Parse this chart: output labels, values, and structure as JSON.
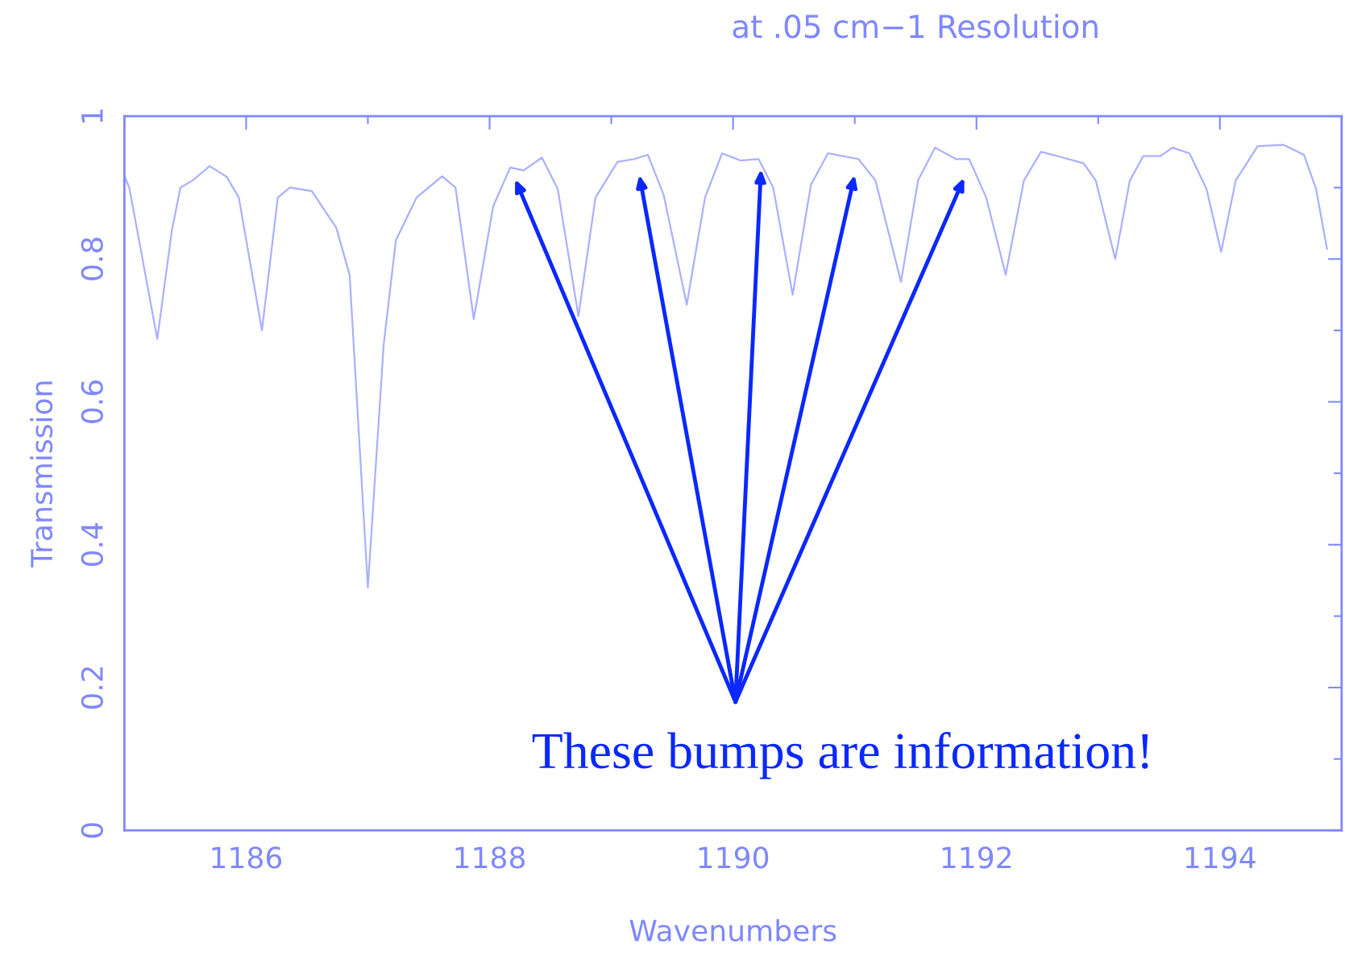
{
  "chart_data": {
    "type": "line",
    "title": "at .05 cm−1 Resolution",
    "xlabel": "Wavenumbers",
    "ylabel": "Transmission",
    "x": [
      1185.0,
      1185.04,
      1185.27,
      1185.39,
      1185.46,
      1185.56,
      1185.7,
      1185.84,
      1185.94,
      1186.13,
      1186.26,
      1186.36,
      1186.54,
      1186.74,
      1186.85,
      1187.0,
      1187.13,
      1187.23,
      1187.4,
      1187.61,
      1187.72,
      1187.87,
      1188.03,
      1188.17,
      1188.28,
      1188.43,
      1188.56,
      1188.73,
      1188.87,
      1189.05,
      1189.19,
      1189.3,
      1189.43,
      1189.62,
      1189.77,
      1189.91,
      1190.06,
      1190.21,
      1190.33,
      1190.49,
      1190.64,
      1190.78,
      1191.03,
      1191.17,
      1191.38,
      1191.52,
      1191.66,
      1191.83,
      1191.94,
      1192.08,
      1192.24,
      1192.39,
      1192.53,
      1192.67,
      1192.88,
      1192.98,
      1193.14,
      1193.26,
      1193.37,
      1193.51,
      1193.61,
      1193.75,
      1193.89,
      1194.01,
      1194.13,
      1194.31,
      1194.52,
      1194.69,
      1194.79,
      1194.88
    ],
    "series": [
      {
        "color": "#aab0ff",
        "values": [
          0.916,
          0.9,
          0.688,
          0.84,
          0.9,
          0.91,
          0.93,
          0.915,
          0.886,
          0.7,
          0.886,
          0.9,
          0.895,
          0.844,
          0.778,
          0.34,
          0.68,
          0.826,
          0.886,
          0.916,
          0.9,
          0.716,
          0.874,
          0.928,
          0.924,
          0.942,
          0.898,
          0.72,
          0.886,
          0.936,
          0.94,
          0.946,
          0.89,
          0.736,
          0.886,
          0.948,
          0.938,
          0.94,
          0.9,
          0.75,
          0.904,
          0.948,
          0.94,
          0.91,
          0.768,
          0.91,
          0.956,
          0.94,
          0.94,
          0.886,
          0.778,
          0.91,
          0.95,
          0.944,
          0.934,
          0.91,
          0.8,
          0.91,
          0.944,
          0.944,
          0.956,
          0.948,
          0.898,
          0.81,
          0.91,
          0.958,
          0.96,
          0.946,
          0.898,
          0.814
        ]
      }
    ],
    "xlim": [
      1185,
      1195
    ],
    "xticks": [
      1186,
      1188,
      1190,
      1192,
      1194
    ],
    "ylim": [
      0,
      1
    ],
    "yticks": [
      0,
      0.2,
      0.4,
      0.6,
      0.8,
      1
    ],
    "grid": false,
    "legend": false,
    "marker": "none",
    "line_style": "solid",
    "annotations": [
      "These bumps are information!"
    ]
  }
}
